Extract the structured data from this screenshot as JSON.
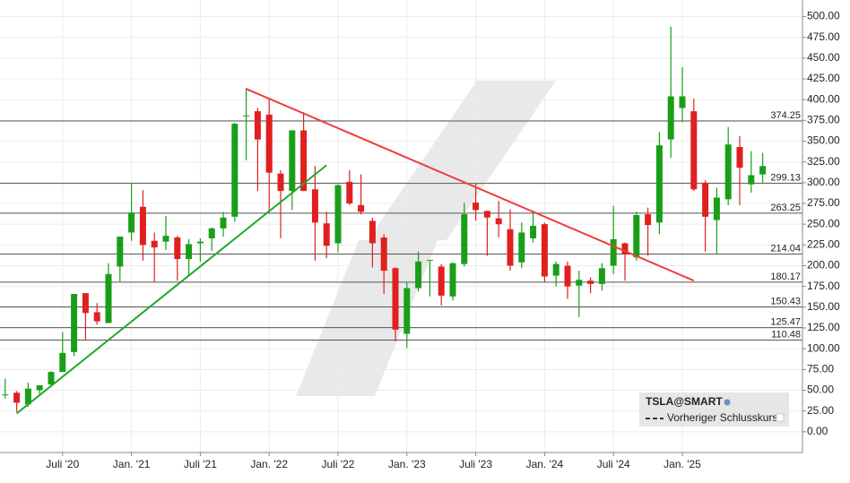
{
  "chart_data": {
    "type": "candlestick",
    "legend": {
      "title": "TSLA@SMART",
      "entry": "Vorheriger Schlusskurs"
    },
    "up_color": "#1a9e1a",
    "down_color": "#e0201f",
    "grid": true,
    "ylim": [
      -25,
      520
    ],
    "yticks": [
      {
        "value": 0,
        "label": "0.00"
      },
      {
        "value": 25,
        "label": "25.00"
      },
      {
        "value": 50,
        "label": "50.00"
      },
      {
        "value": 75,
        "label": "75.00"
      },
      {
        "value": 100,
        "label": "100.00"
      },
      {
        "value": 125,
        "label": "125.00"
      },
      {
        "value": 150,
        "label": "150.00"
      },
      {
        "value": 175,
        "label": "175.00"
      },
      {
        "value": 200,
        "label": "200.00"
      },
      {
        "value": 225,
        "label": "225.00"
      },
      {
        "value": 250,
        "label": "250.00"
      },
      {
        "value": 275,
        "label": "275.00"
      },
      {
        "value": 300,
        "label": "300.00"
      },
      {
        "value": 325,
        "label": "325.00"
      },
      {
        "value": 350,
        "label": "350.00"
      },
      {
        "value": 375,
        "label": "375.00"
      },
      {
        "value": 400,
        "label": "400.00"
      },
      {
        "value": 425,
        "label": "425.00"
      },
      {
        "value": 450,
        "label": "450.00"
      },
      {
        "value": 475,
        "label": "475.00"
      },
      {
        "value": 500,
        "label": "500.00"
      }
    ],
    "xticks": [
      {
        "value": "2020-07",
        "label": "Juli '20"
      },
      {
        "value": "2021-01",
        "label": "Jan. '21"
      },
      {
        "value": "2021-07",
        "label": "Juli '21"
      },
      {
        "value": "2022-01",
        "label": "Jan. '22"
      },
      {
        "value": "2022-07",
        "label": "Juli '22"
      },
      {
        "value": "2023-01",
        "label": "Jan. '23"
      },
      {
        "value": "2023-07",
        "label": "Juli '23"
      },
      {
        "value": "2024-01",
        "label": "Jan. '24"
      },
      {
        "value": "2024-07",
        "label": "Juli '24"
      },
      {
        "value": "2025-01",
        "label": "Jan. '25"
      }
    ],
    "levels": [
      374.25,
      299.13,
      263.25,
      214.04,
      180.17,
      150.43,
      125.47,
      110.48
    ],
    "trendlines": [
      {
        "color": "#f03c3c",
        "x": [
          "2021-11",
          "2025-02"
        ],
        "y": [
          413,
          182
        ]
      },
      {
        "color": "#1faa2a",
        "x": [
          "2020-03",
          "2022-06"
        ],
        "y": [
          22,
          321
        ]
      }
    ],
    "x": [
      "2020-02",
      "2020-03",
      "2020-04",
      "2020-05",
      "2020-06",
      "2020-07",
      "2020-08",
      "2020-09",
      "2020-10",
      "2020-11",
      "2020-12",
      "2021-01",
      "2021-02",
      "2021-03",
      "2021-04",
      "2021-05",
      "2021-06",
      "2021-07",
      "2021-08",
      "2021-09",
      "2021-10",
      "2021-11",
      "2021-12",
      "2022-01",
      "2022-02",
      "2022-03",
      "2022-04",
      "2022-05",
      "2022-06",
      "2022-07",
      "2022-08",
      "2022-09",
      "2022-10",
      "2022-11",
      "2022-12",
      "2023-01",
      "2023-02",
      "2023-03",
      "2023-04",
      "2023-05",
      "2023-06",
      "2023-07",
      "2023-08",
      "2023-09",
      "2023-10",
      "2023-11",
      "2023-12",
      "2024-01",
      "2024-02",
      "2024-03",
      "2024-04",
      "2024-05",
      "2024-06",
      "2024-07",
      "2024-08",
      "2024-09",
      "2024-10",
      "2024-11",
      "2024-12",
      "2025-01",
      "2025-02",
      "2025-03",
      "2025-04",
      "2025-05",
      "2025-06",
      "2025-07",
      "2025-08"
    ],
    "open": [
      44,
      47,
      33,
      50,
      57,
      72,
      96,
      167,
      144,
      131,
      199,
      240,
      271,
      230,
      229,
      234,
      208,
      227,
      233,
      245,
      259,
      381,
      386,
      382,
      311,
      290,
      363,
      292,
      251,
      227,
      301,
      273,
      254,
      234,
      197,
      118,
      173,
      206,
      199,
      163,
      202,
      276,
      266,
      257,
      244,
      204,
      233,
      250,
      188,
      200,
      176,
      182,
      178,
      200,
      227,
      210,
      262,
      252,
      352,
      390,
      386,
      300,
      255,
      280,
      343,
      298,
      310
    ],
    "high": [
      64,
      49,
      59,
      56,
      73,
      120,
      166,
      167,
      155,
      203,
      235,
      300,
      291,
      240,
      260,
      236,
      232,
      233,
      246,
      265,
      372,
      414,
      390,
      402,
      315,
      363,
      385,
      320,
      265,
      298,
      315,
      310,
      258,
      238,
      198,
      180,
      217,
      207,
      202,
      204,
      276,
      299,
      266,
      278,
      268,
      252,
      266,
      252,
      205,
      205,
      194,
      186,
      203,
      272,
      228,
      265,
      270,
      361,
      488,
      439,
      401,
      303,
      294,
      367,
      356,
      338,
      336
    ],
    "low": [
      40,
      24,
      30,
      45,
      55,
      72,
      91,
      110,
      129,
      131,
      181,
      230,
      206,
      180,
      219,
      182,
      187,
      205,
      218,
      235,
      253,
      327,
      290,
      264,
      233,
      267,
      290,
      206,
      209,
      216,
      273,
      262,
      198,
      166,
      109,
      101,
      169,
      163,
      152,
      158,
      199,
      254,
      212,
      234,
      194,
      197,
      228,
      180,
      175,
      160,
      138,
      167,
      170,
      190,
      182,
      206,
      212,
      238,
      330,
      373,
      290,
      217,
      214,
      273,
      273,
      288,
      300
    ],
    "close": [
      45,
      35,
      52,
      56,
      72,
      95,
      166,
      143,
      133,
      190,
      235,
      264,
      225,
      222,
      236,
      208,
      226,
      229,
      245,
      258,
      371,
      381,
      352,
      312,
      290,
      363,
      290,
      252,
      224,
      297,
      275,
      265,
      227,
      194,
      123,
      173,
      205,
      207,
      164,
      203,
      262,
      267,
      258,
      250,
      200,
      240,
      248,
      187,
      202,
      175,
      183,
      178,
      197,
      232,
      214,
      261,
      249,
      345,
      404,
      404,
      292,
      259,
      282,
      346,
      318,
      309,
      320
    ]
  }
}
